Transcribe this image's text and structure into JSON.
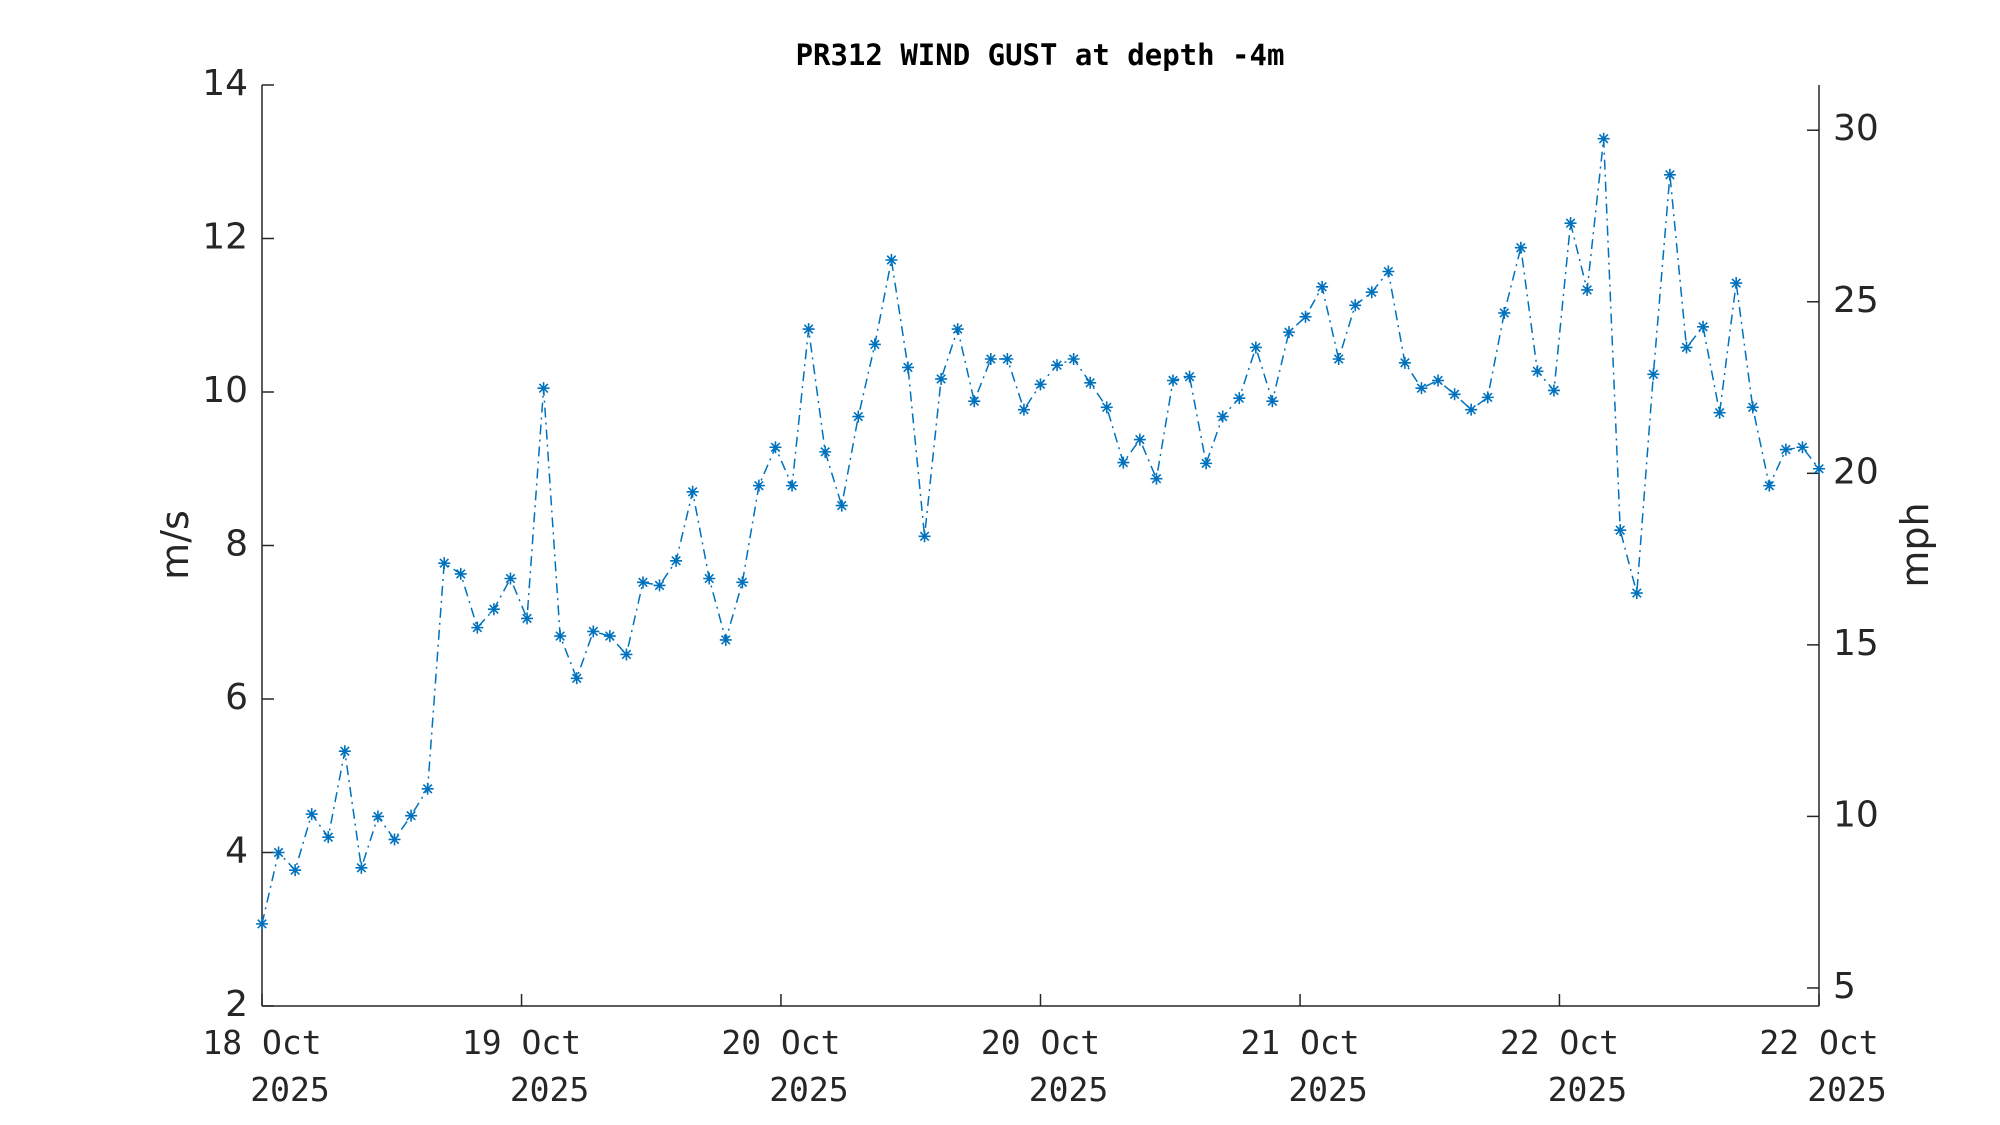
{
  "chart_data": {
    "type": "line",
    "title": "PR312 WIND GUST at depth -4m",
    "y_label": "m/s",
    "y2_label": "mph",
    "x": [
      0,
      1,
      2,
      3,
      4,
      5,
      6,
      7,
      8,
      9,
      10,
      11,
      12,
      13,
      14,
      15,
      16,
      17,
      18,
      19,
      20,
      21,
      22,
      23,
      24,
      25,
      26,
      27,
      28,
      29,
      30,
      31,
      32,
      33,
      34,
      35,
      36,
      37,
      38,
      39,
      40,
      41,
      42,
      43,
      44,
      45,
      46,
      47,
      48,
      49,
      50,
      51,
      52,
      53,
      54,
      55,
      56,
      57,
      58,
      59,
      60,
      61,
      62,
      63,
      64,
      65,
      66,
      67,
      68,
      69,
      70,
      71,
      72,
      73,
      74,
      75,
      76,
      77,
      78,
      79,
      80,
      81,
      82,
      83,
      84,
      85,
      86,
      87,
      88,
      89,
      90,
      91,
      92,
      93,
      94
    ],
    "series": [
      {
        "name": "m/s",
        "color": "#0072bd",
        "line_style": "dashdot",
        "marker": "asterisk",
        "values": [
          3.07,
          4.0,
          3.77,
          4.5,
          4.2,
          5.32,
          3.8,
          4.47,
          4.17,
          4.48,
          4.83,
          7.77,
          7.63,
          6.93,
          7.17,
          7.57,
          7.05,
          10.05,
          6.82,
          6.27,
          6.88,
          6.82,
          6.58,
          7.52,
          7.48,
          7.8,
          8.7,
          7.57,
          6.77,
          7.52,
          8.78,
          9.28,
          8.78,
          10.82,
          9.22,
          8.52,
          9.68,
          10.62,
          11.72,
          10.32,
          8.12,
          10.17,
          10.82,
          9.88,
          10.43,
          10.43,
          9.77,
          10.1,
          10.35,
          10.43,
          10.12,
          9.8,
          9.08,
          9.38,
          8.87,
          10.15,
          10.2,
          9.07,
          9.68,
          9.92,
          10.58,
          9.88,
          10.78,
          10.98,
          11.37,
          10.43,
          11.13,
          11.3,
          11.57,
          10.38,
          10.05,
          10.15,
          9.97,
          9.77,
          9.93,
          11.03,
          11.88,
          10.27,
          10.02,
          12.2,
          11.33,
          13.3,
          8.2,
          7.38,
          10.23,
          12.83,
          10.58,
          10.85,
          9.73,
          11.42,
          9.8,
          8.78,
          9.25,
          9.28,
          9.0
        ]
      }
    ],
    "xlim": [
      0,
      94
    ],
    "xticks": [
      {
        "value": 0,
        "label": "18 Oct 2025"
      },
      {
        "value": 15.67,
        "label": "19 Oct 2025"
      },
      {
        "value": 31.33,
        "label": "20 Oct 2025"
      },
      {
        "value": 47,
        "label": "20 Oct 2025"
      },
      {
        "value": 62.67,
        "label": "21 Oct 2025"
      },
      {
        "value": 78.33,
        "label": "22 Oct 2025"
      },
      {
        "value": 94,
        "label": "22 Oct 2025"
      }
    ],
    "ylim": [
      2,
      14
    ],
    "yticks": [
      2,
      4,
      6,
      8,
      10,
      12,
      14
    ],
    "y2lim": [
      4.474,
      31.318
    ],
    "y2ticks": [
      5,
      10,
      15,
      20,
      25,
      30
    ],
    "grid": false
  }
}
